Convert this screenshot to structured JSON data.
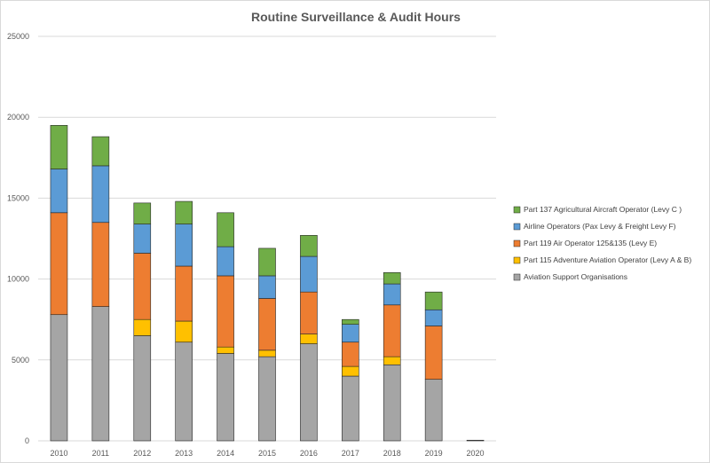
{
  "chart_data": {
    "type": "bar",
    "stacked": true,
    "title": "Routine Surveillance & Audit Hours",
    "xlabel": "",
    "ylabel": "",
    "ylim": [
      0,
      25000
    ],
    "yticks": [
      0,
      5000,
      10000,
      15000,
      20000,
      25000
    ],
    "grid": true,
    "legend_position": "right",
    "categories": [
      "2010",
      "2011",
      "2012",
      "2013",
      "2014",
      "2015",
      "2016",
      "2017",
      "2018",
      "2019",
      "2020"
    ],
    "series": [
      {
        "name": "Aviation Support Organisations",
        "color": "#a5a5a5",
        "values": [
          7800,
          8300,
          6500,
          6100,
          5400,
          5200,
          6000,
          4000,
          4700,
          3800,
          40
        ]
      },
      {
        "name": "Part 115 Adventure Aviation Operator (Levy A & B)",
        "color": "#ffc000",
        "values": [
          0,
          0,
          1000,
          1300,
          400,
          400,
          600,
          600,
          500,
          0,
          0
        ]
      },
      {
        "name": "Part 119 Air Operator 125&135 (Levy E)",
        "color": "#ed7d31",
        "values": [
          6300,
          5200,
          4100,
          3400,
          4400,
          3200,
          2600,
          1500,
          3200,
          3300,
          0
        ]
      },
      {
        "name": "Airline Operators (Pax Levy & Freight Levy F)",
        "color": "#5b9bd5",
        "values": [
          2700,
          3500,
          1800,
          2600,
          1800,
          1400,
          2200,
          1100,
          1300,
          1000,
          0
        ]
      },
      {
        "name": "Part 137 Agricultural Aircraft Operator (Levy C )",
        "color": "#70ad47",
        "values": [
          2700,
          1800,
          1300,
          1400,
          2100,
          1700,
          1300,
          300,
          700,
          1100,
          0
        ]
      }
    ],
    "legend_order": [
      4,
      3,
      2,
      1,
      0
    ],
    "gridline_color": "#d9d9d9",
    "bar_outline_color": "#262626"
  }
}
